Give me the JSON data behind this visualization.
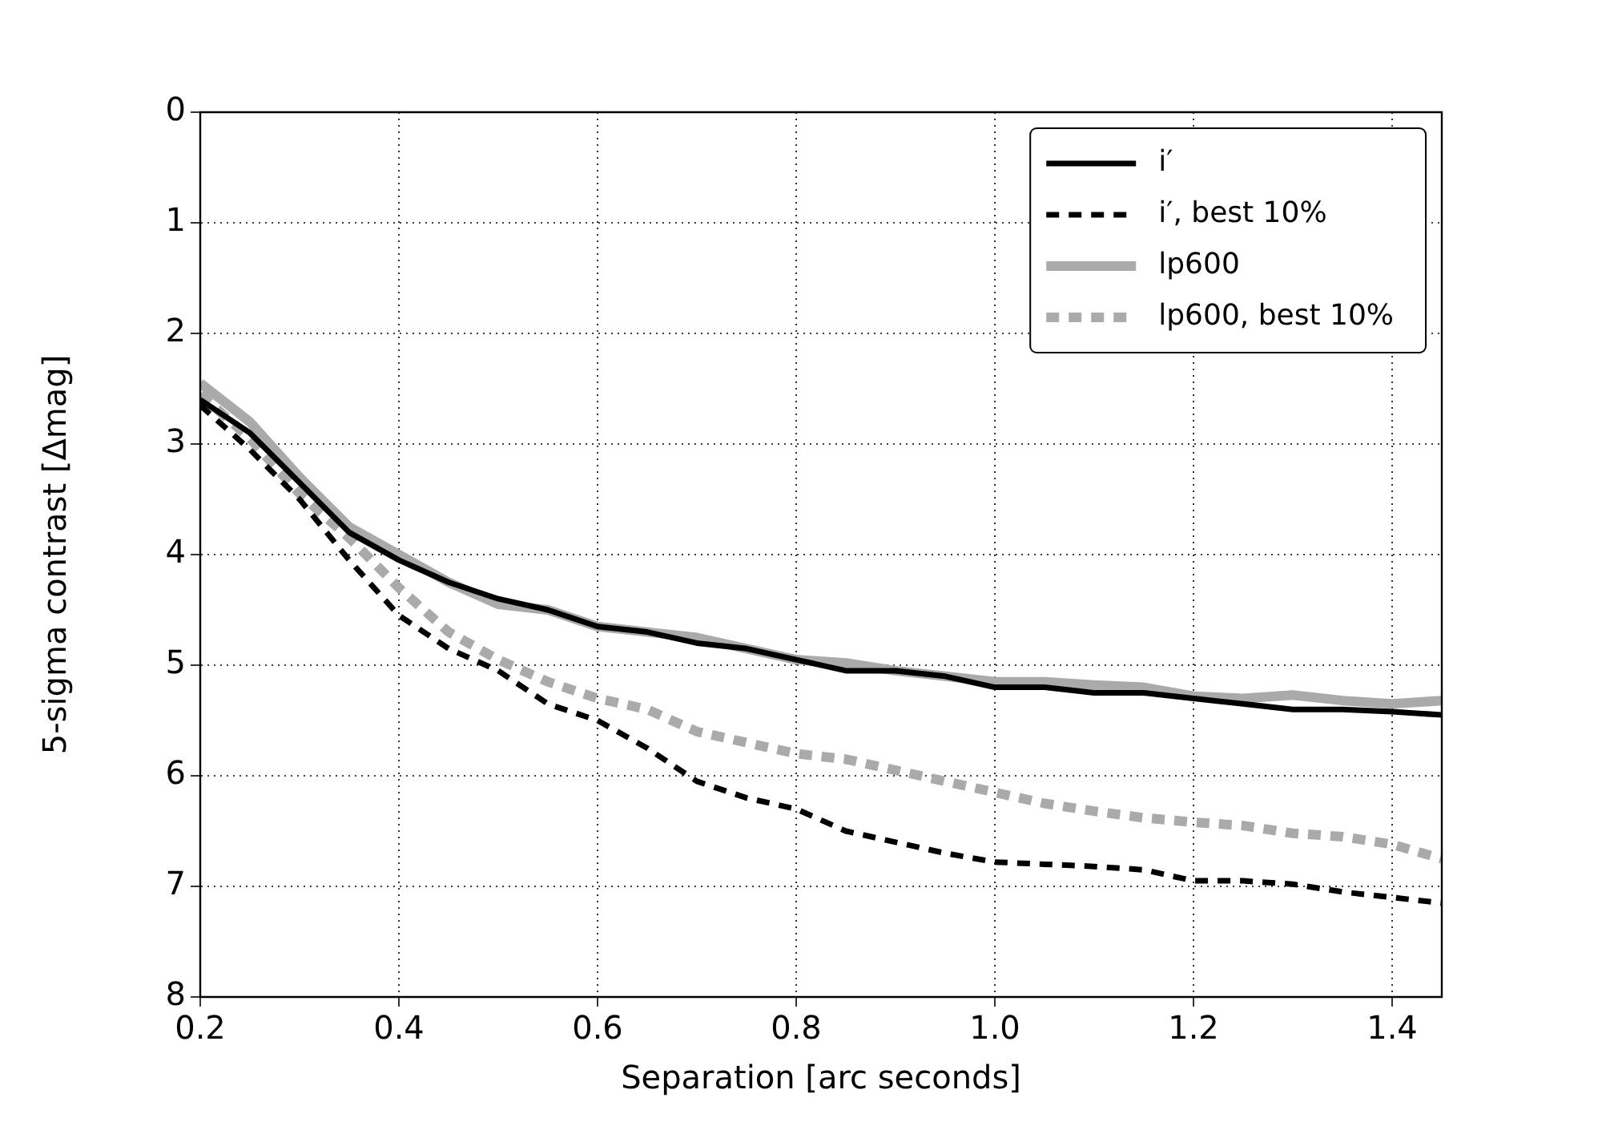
{
  "chart_data": {
    "type": "line",
    "xlabel": "Separation [arc seconds]",
    "ylabel": "5-sigma contrast [Δmag]",
    "xlim": [
      0.2,
      1.45
    ],
    "xticks": [
      {
        "value": 0.2,
        "label": "0.2"
      },
      {
        "value": 0.4,
        "label": "0.4"
      },
      {
        "value": 0.6,
        "label": "0.6"
      },
      {
        "value": 0.8,
        "label": "0.8"
      },
      {
        "value": 1.0,
        "label": "1.0"
      },
      {
        "value": 1.2,
        "label": "1.2"
      },
      {
        "value": 1.4,
        "label": "1.4"
      }
    ],
    "ylim": [
      8,
      0
    ],
    "yticks": [
      0,
      1,
      2,
      3,
      4,
      5,
      6,
      7,
      8
    ],
    "grid": true,
    "legend": "top right",
    "marker": "none",
    "x": [
      0.2,
      0.25,
      0.3,
      0.35,
      0.4,
      0.45,
      0.5,
      0.55,
      0.6,
      0.65,
      0.7,
      0.75,
      0.8,
      0.85,
      0.9,
      0.95,
      1.0,
      1.05,
      1.1,
      1.15,
      1.2,
      1.25,
      1.3,
      1.35,
      1.4,
      1.45
    ],
    "series": [
      {
        "name": "i′",
        "color": "#000000",
        "line_style": "solid",
        "values": [
          2.6,
          2.9,
          3.35,
          3.8,
          4.05,
          4.25,
          4.4,
          4.5,
          4.65,
          4.7,
          4.8,
          4.85,
          4.95,
          5.05,
          5.05,
          5.1,
          5.2,
          5.2,
          5.25,
          5.25,
          5.3,
          5.35,
          5.4,
          5.4,
          5.42,
          5.45
        ]
      },
      {
        "name": "i′, best 10%",
        "color": "#000000",
        "line_style": "dashed",
        "values": [
          2.65,
          3.05,
          3.5,
          4.05,
          4.55,
          4.85,
          5.05,
          5.35,
          5.5,
          5.75,
          6.05,
          6.2,
          6.3,
          6.5,
          6.6,
          6.7,
          6.78,
          6.8,
          6.82,
          6.85,
          6.95,
          6.95,
          6.98,
          7.05,
          7.1,
          7.15
        ]
      },
      {
        "name": "lp600",
        "color": "#aaaaaa",
        "line_style": "solid",
        "values": [
          2.45,
          2.8,
          3.3,
          3.75,
          4.0,
          4.25,
          4.45,
          4.5,
          4.65,
          4.7,
          4.75,
          4.85,
          4.95,
          4.98,
          5.05,
          5.1,
          5.15,
          5.15,
          5.18,
          5.2,
          5.28,
          5.3,
          5.27,
          5.32,
          5.35,
          5.32
        ]
      },
      {
        "name": "lp600, best 10%",
        "color": "#aaaaaa",
        "line_style": "dotted",
        "values": [
          2.55,
          2.95,
          3.45,
          3.85,
          4.3,
          4.7,
          4.95,
          5.15,
          5.3,
          5.4,
          5.6,
          5.7,
          5.8,
          5.85,
          5.95,
          6.05,
          6.15,
          6.25,
          6.32,
          6.38,
          6.42,
          6.45,
          6.52,
          6.55,
          6.62,
          6.75
        ]
      }
    ]
  }
}
